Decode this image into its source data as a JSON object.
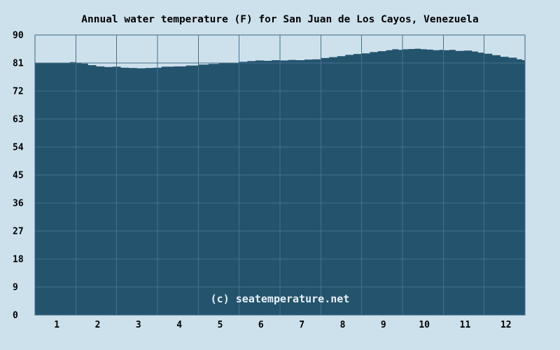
{
  "chart_data": {
    "type": "area",
    "title": "Annual water temperature (F) for San Juan de Los Cayos, Venezuela",
    "watermark": "(c) seatemperature.net",
    "unit": "F",
    "x_months": 12,
    "x_tick_labels": [
      "1",
      "2",
      "3",
      "4",
      "5",
      "6",
      "7",
      "8",
      "9",
      "10",
      "11",
      "12"
    ],
    "y_tick_labels": [
      "90",
      "81",
      "72",
      "63",
      "54",
      "45",
      "36",
      "27",
      "18",
      "9",
      "0"
    ],
    "ylim": [
      0,
      90
    ],
    "y_grid_step": 9,
    "grid": true,
    "legend": null,
    "categories": [
      "Jan",
      "Feb",
      "Mar",
      "Apr",
      "May",
      "Jun",
      "Jul",
      "Aug",
      "Sep",
      "Oct",
      "Nov",
      "Dec"
    ],
    "monthly_values_f": [
      81.0,
      80.3,
      79.4,
      80.0,
      80.9,
      81.8,
      82.0,
      83.4,
      85.2,
      85.3,
      84.4,
      82.4
    ],
    "samples": [
      [
        0.0,
        81.0
      ],
      [
        0.25,
        80.9
      ],
      [
        0.5,
        81.0
      ],
      [
        0.7,
        81.1
      ],
      [
        0.85,
        81.3
      ],
      [
        1.0,
        81.0
      ],
      [
        1.15,
        80.8
      ],
      [
        1.3,
        80.3
      ],
      [
        1.5,
        79.9
      ],
      [
        1.7,
        79.7
      ],
      [
        1.9,
        79.8
      ],
      [
        2.1,
        79.5
      ],
      [
        2.3,
        79.4
      ],
      [
        2.5,
        79.3
      ],
      [
        2.7,
        79.4
      ],
      [
        2.9,
        79.5
      ],
      [
        3.1,
        79.8
      ],
      [
        3.4,
        79.9
      ],
      [
        3.7,
        80.2
      ],
      [
        4.0,
        80.5
      ],
      [
        4.25,
        80.7
      ],
      [
        4.5,
        80.9
      ],
      [
        4.75,
        81.1
      ],
      [
        5.0,
        81.4
      ],
      [
        5.2,
        81.6
      ],
      [
        5.4,
        81.8
      ],
      [
        5.6,
        81.7
      ],
      [
        5.8,
        81.9
      ],
      [
        6.0,
        81.8
      ],
      [
        6.2,
        82.0
      ],
      [
        6.4,
        81.9
      ],
      [
        6.6,
        82.1
      ],
      [
        6.8,
        82.2
      ],
      [
        7.0,
        82.6
      ],
      [
        7.2,
        82.9
      ],
      [
        7.4,
        83.2
      ],
      [
        7.6,
        83.6
      ],
      [
        7.8,
        83.9
      ],
      [
        8.0,
        84.1
      ],
      [
        8.2,
        84.5
      ],
      [
        8.4,
        84.8
      ],
      [
        8.6,
        85.1
      ],
      [
        8.75,
        85.4
      ],
      [
        8.9,
        85.2
      ],
      [
        9.0,
        85.4
      ],
      [
        9.15,
        85.5
      ],
      [
        9.3,
        85.6
      ],
      [
        9.45,
        85.4
      ],
      [
        9.6,
        85.3
      ],
      [
        9.75,
        85.1
      ],
      [
        9.9,
        85.2
      ],
      [
        10.0,
        85.1
      ],
      [
        10.15,
        85.2
      ],
      [
        10.3,
        84.9
      ],
      [
        10.5,
        85.0
      ],
      [
        10.7,
        84.7
      ],
      [
        10.85,
        84.3
      ],
      [
        11.0,
        84.0
      ],
      [
        11.2,
        83.5
      ],
      [
        11.4,
        83.0
      ],
      [
        11.6,
        82.7
      ],
      [
        11.8,
        82.2
      ],
      [
        11.93,
        81.9
      ],
      [
        12.0,
        81.1
      ]
    ],
    "colors": {
      "background": "#cde1ec",
      "area_fill": "#24536d",
      "grid_line": "#44708b",
      "plot_border": "#3c6883",
      "axis_text": "#000000",
      "watermark_text": "#e9f1f7"
    }
  }
}
